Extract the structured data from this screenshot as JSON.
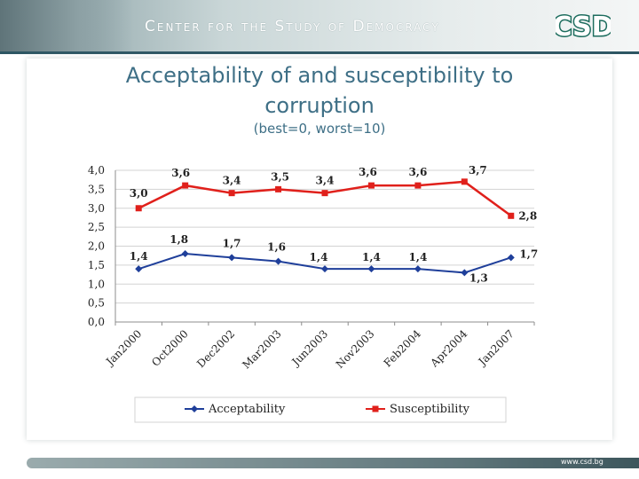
{
  "header": {
    "title": "Center for the Study of Democracy",
    "logo_text": "CSD"
  },
  "footer": {
    "url": "www.csd.bg"
  },
  "chart_data": {
    "type": "line",
    "title": "Acceptability of and susceptibility to corruption",
    "title_line1": "Acceptability of and susceptibility to",
    "title_line2": "corruption",
    "subtitle": "(best=0, worst=10)",
    "categories": [
      "Jan2000",
      "Oct2000",
      "Dec2002",
      "Mar2003",
      "Jun2003",
      "Nov2003",
      "Feb2004",
      "Apr2004",
      "Jan2007"
    ],
    "y_ticks": [
      "4,0",
      "3,5",
      "3,0",
      "2,5",
      "2,0",
      "1,5",
      "1,0",
      "0,5",
      "0,0"
    ],
    "ylim": [
      0,
      4
    ],
    "grid": true,
    "legend_position": "bottom",
    "series": [
      {
        "name": "Acceptability",
        "color": "#1f3f9a",
        "marker": "diamond",
        "values": [
          1.4,
          1.8,
          1.7,
          1.6,
          1.4,
          1.4,
          1.4,
          1.3,
          1.7
        ],
        "labels": [
          "1,4",
          "1,8",
          "1,7",
          "1,6",
          "1,4",
          "1,4",
          "1,4",
          "1,3",
          "1,7"
        ]
      },
      {
        "name": "Susceptibility",
        "color": "#e0201b",
        "marker": "square",
        "values": [
          3.0,
          3.6,
          3.4,
          3.5,
          3.4,
          3.6,
          3.6,
          3.7,
          2.8
        ],
        "labels": [
          "3,0",
          "3,6",
          "3,4",
          "3,5",
          "3,4",
          "3,6",
          "3,6",
          "3,7",
          "2,8"
        ]
      }
    ]
  }
}
